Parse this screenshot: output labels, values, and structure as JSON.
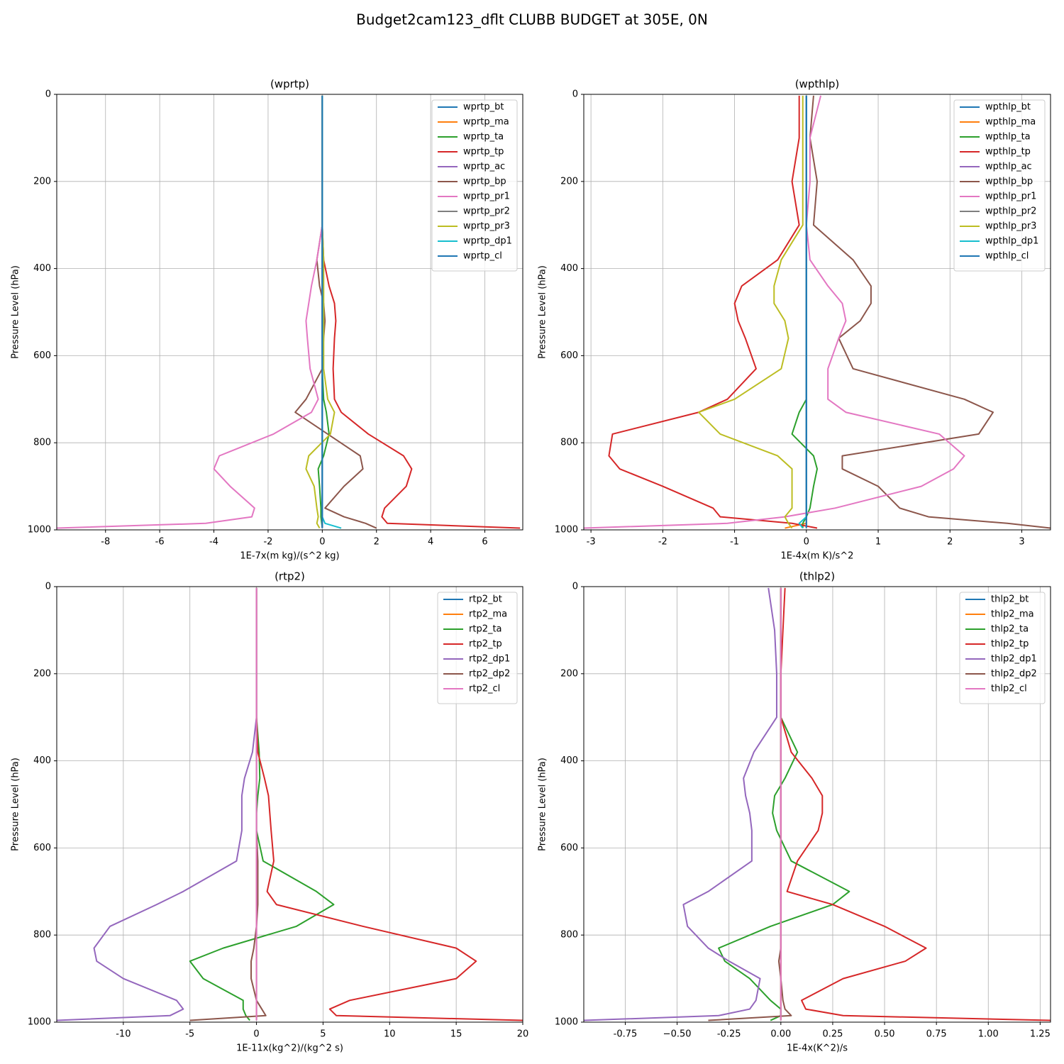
{
  "title": "Budget2cam123_dflt CLUBB BUDGET at 305E, 0N",
  "chart_data": [
    {
      "type": "line",
      "title": "(wprtp)",
      "xlabel": "1E-7x(m kg)/(s^2 kg)",
      "ylabel": "Pressure Level (hPa)",
      "y": [
        3,
        100,
        200,
        300,
        380,
        440,
        480,
        520,
        560,
        630,
        700,
        730,
        780,
        830,
        860,
        900,
        950,
        970,
        985,
        996
      ],
      "xlim": [
        -9.8,
        7.4
      ],
      "ylim": [
        1000,
        0
      ],
      "xticks": [
        -8,
        -6,
        -4,
        -2,
        0,
        2,
        4,
        6
      ],
      "yticks": [
        0,
        200,
        400,
        600,
        800,
        1000
      ],
      "grid": true,
      "legend": "upper-right",
      "series": [
        {
          "name": "wprtp_bt",
          "color": "#1f77b4",
          "values": [
            0,
            0,
            0,
            0,
            0,
            0,
            0,
            0,
            0,
            0,
            0,
            0,
            0,
            0,
            0,
            0,
            0,
            0,
            0,
            0
          ]
        },
        {
          "name": "wprtp_ma",
          "color": "#ff7f0e",
          "values": [
            0,
            0,
            0,
            0,
            0,
            0,
            0,
            0,
            0,
            0,
            0,
            0,
            0,
            0,
            0,
            0,
            0,
            0,
            0,
            0
          ]
        },
        {
          "name": "wprtp_ta",
          "color": "#2ca02c",
          "values": [
            0,
            0,
            0,
            0,
            0,
            0,
            0,
            0,
            0,
            0,
            0.05,
            0.15,
            0.25,
            0.05,
            -0.15,
            -0.1,
            -0.05,
            -0.05,
            -0.02,
            0
          ]
        },
        {
          "name": "wprtp_tp",
          "color": "#d62728",
          "values": [
            0,
            0,
            0,
            0,
            0.05,
            0.25,
            0.45,
            0.5,
            0.45,
            0.4,
            0.45,
            0.7,
            1.7,
            3.0,
            3.3,
            3.1,
            2.3,
            2.2,
            2.4,
            7.3
          ]
        },
        {
          "name": "wprtp_ac",
          "color": "#9467bd",
          "values": [
            0,
            0,
            0,
            0,
            0,
            0,
            0,
            0,
            0,
            0,
            0,
            0,
            0,
            0,
            0,
            0,
            0,
            0,
            0,
            0
          ]
        },
        {
          "name": "wprtp_bp",
          "color": "#8c564b",
          "values": [
            0,
            0,
            0,
            0,
            -0.2,
            -0.1,
            0.05,
            0.1,
            0.05,
            0,
            -0.6,
            -1.0,
            0.2,
            1.4,
            1.5,
            0.8,
            0.1,
            0.8,
            1.6,
            2.0
          ]
        },
        {
          "name": "wprtp_pr1",
          "color": "#e377c2",
          "values": [
            0,
            0,
            0,
            0,
            -0.2,
            -0.4,
            -0.5,
            -0.6,
            -0.55,
            -0.45,
            -0.15,
            -0.4,
            -1.8,
            -3.8,
            -4.0,
            -3.4,
            -2.5,
            -2.6,
            -4.3,
            -9.8
          ]
        },
        {
          "name": "wprtp_pr2",
          "color": "#7f7f7f",
          "values": [
            0,
            0,
            0,
            0,
            0,
            0,
            0,
            0,
            0,
            0,
            0,
            0,
            0,
            0,
            0,
            0,
            0,
            0,
            0,
            0
          ]
        },
        {
          "name": "wprtp_pr3",
          "color": "#bcbd22",
          "values": [
            0,
            0,
            0,
            0,
            0.05,
            0.05,
            0.05,
            0.05,
            0.05,
            0.05,
            0.2,
            0.45,
            0.3,
            -0.5,
            -0.6,
            -0.3,
            -0.2,
            -0.15,
            -0.2,
            -0.1
          ]
        },
        {
          "name": "wprtp_dp1",
          "color": "#17becf",
          "values": [
            0,
            0,
            0,
            0,
            0,
            0,
            0,
            0,
            0,
            0,
            0,
            0,
            0,
            0,
            0,
            0,
            0,
            0,
            0.1,
            0.7
          ]
        },
        {
          "name": "wprtp_cl",
          "color": "#1f77b4",
          "values": [
            0,
            0,
            0,
            0,
            0,
            0,
            0,
            0,
            0,
            0,
            0,
            0,
            0,
            0,
            0,
            0,
            0,
            0,
            0,
            0
          ]
        }
      ]
    },
    {
      "type": "line",
      "title": "(wpthlp)",
      "xlabel": "1E-4x(m K)/s^2",
      "ylabel": "Pressure Level (hPa)",
      "y": [
        3,
        100,
        200,
        300,
        380,
        440,
        480,
        520,
        560,
        630,
        700,
        730,
        780,
        830,
        860,
        900,
        950,
        970,
        985,
        996
      ],
      "xlim": [
        -3.1,
        3.4
      ],
      "ylim": [
        1000,
        0
      ],
      "xticks": [
        -3,
        -2,
        -1,
        0,
        1,
        2,
        3
      ],
      "yticks": [
        0,
        200,
        400,
        600,
        800,
        1000
      ],
      "grid": true,
      "legend": "upper-right",
      "series": [
        {
          "name": "wpthlp_bt",
          "color": "#1f77b4",
          "values": [
            0,
            0,
            0,
            0,
            0,
            0,
            0,
            0,
            0,
            0,
            0,
            0,
            0,
            0,
            0,
            0,
            0,
            0,
            0,
            0
          ]
        },
        {
          "name": "wpthlp_ma",
          "color": "#ff7f0e",
          "values": [
            0,
            0,
            0,
            0,
            0,
            0,
            0,
            0,
            0,
            0,
            0,
            0,
            0,
            0,
            0,
            0,
            0,
            0,
            0,
            -0.3
          ]
        },
        {
          "name": "wpthlp_ta",
          "color": "#2ca02c",
          "values": [
            0,
            0,
            0,
            0,
            0,
            0,
            0,
            0,
            0,
            0,
            0,
            -0.1,
            -0.2,
            0.1,
            0.15,
            0.1,
            0.05,
            0,
            -0.05,
            -0.05
          ]
        },
        {
          "name": "wpthlp_tp",
          "color": "#d62728",
          "values": [
            -0.1,
            -0.1,
            -0.2,
            -0.1,
            -0.4,
            -0.9,
            -1.0,
            -0.95,
            -0.85,
            -0.7,
            -1.1,
            -1.5,
            -2.7,
            -2.75,
            -2.6,
            -2.0,
            -1.3,
            -1.2,
            -0.2,
            0.15
          ]
        },
        {
          "name": "wpthlp_ac",
          "color": "#9467bd",
          "values": [
            0,
            0,
            0,
            0,
            0,
            0,
            0,
            0,
            0,
            0,
            0,
            0,
            0,
            0,
            0,
            0,
            0,
            0,
            0,
            0
          ]
        },
        {
          "name": "wpthlp_bp",
          "color": "#8c564b",
          "values": [
            0.1,
            0.05,
            0.15,
            0.1,
            0.65,
            0.9,
            0.9,
            0.75,
            0.45,
            0.65,
            2.2,
            2.6,
            2.4,
            0.5,
            0.5,
            1.0,
            1.3,
            1.7,
            2.8,
            3.4
          ]
        },
        {
          "name": "wpthlp_pr1",
          "color": "#e377c2",
          "values": [
            0.2,
            0.05,
            0.05,
            0,
            0.05,
            0.3,
            0.5,
            0.55,
            0.45,
            0.3,
            0.3,
            0.55,
            1.85,
            2.2,
            2.05,
            1.6,
            0.4,
            -0.3,
            -1.1,
            -3.1
          ]
        },
        {
          "name": "wpthlp_pr2",
          "color": "#7f7f7f",
          "values": [
            0,
            0,
            0,
            0,
            0,
            0,
            0,
            0,
            0,
            0,
            0,
            0,
            0,
            0,
            0,
            0,
            0,
            0,
            0,
            0
          ]
        },
        {
          "name": "wpthlp_pr3",
          "color": "#bcbd22",
          "values": [
            -0.05,
            -0.05,
            -0.05,
            -0.05,
            -0.35,
            -0.45,
            -0.45,
            -0.3,
            -0.25,
            -0.35,
            -1.0,
            -1.5,
            -1.2,
            -0.4,
            -0.2,
            -0.2,
            -0.2,
            -0.3,
            -0.25,
            -0.2
          ]
        },
        {
          "name": "wpthlp_dp1",
          "color": "#17becf",
          "values": [
            0,
            0,
            0,
            0,
            0,
            0,
            0,
            0,
            0,
            0,
            0,
            0,
            0,
            0,
            0,
            0,
            0,
            0,
            -0.1,
            -0.05
          ]
        },
        {
          "name": "wpthlp_cl",
          "color": "#1f77b4",
          "values": [
            0,
            0,
            0,
            0,
            0,
            0,
            0,
            0,
            0,
            0,
            0,
            0,
            0,
            0,
            0,
            0,
            0,
            0,
            0,
            0
          ]
        }
      ]
    },
    {
      "type": "line",
      "title": "(rtp2)",
      "xlabel": "1E-11x(kg^2)/(kg^2 s)",
      "ylabel": "Pressure Level (hPa)",
      "y": [
        3,
        100,
        200,
        300,
        380,
        440,
        480,
        520,
        560,
        630,
        700,
        730,
        780,
        830,
        860,
        900,
        950,
        970,
        985,
        996
      ],
      "xlim": [
        -15,
        20
      ],
      "ylim": [
        1000,
        0
      ],
      "xticks": [
        -10,
        -5,
        0,
        5,
        10,
        15,
        20
      ],
      "yticks": [
        0,
        200,
        400,
        600,
        800,
        1000
      ],
      "grid": true,
      "legend": "upper-right",
      "series": [
        {
          "name": "rtp2_bt",
          "color": "#1f77b4",
          "values": [
            0,
            0,
            0,
            0,
            0,
            0,
            0,
            0,
            0,
            0,
            0,
            0,
            0,
            0,
            0,
            0,
            0,
            0,
            0,
            0
          ]
        },
        {
          "name": "rtp2_ma",
          "color": "#ff7f0e",
          "values": [
            0,
            0,
            0,
            0,
            0,
            0,
            0,
            0,
            0,
            0,
            0,
            0,
            0,
            0,
            0,
            0,
            0,
            0,
            0,
            0
          ]
        },
        {
          "name": "rtp2_ta",
          "color": "#2ca02c",
          "values": [
            0,
            0,
            0,
            0,
            0.2,
            0.25,
            0.1,
            0,
            0,
            0.5,
            4.5,
            5.8,
            3,
            -2.5,
            -5,
            -4,
            -1,
            -1,
            -0.8,
            -0.5
          ]
        },
        {
          "name": "rtp2_tp",
          "color": "#d62728",
          "values": [
            0,
            0,
            0,
            0,
            0.1,
            0.6,
            0.9,
            1.0,
            1.1,
            1.3,
            0.8,
            1.5,
            8,
            15,
            16.5,
            15,
            7,
            5.5,
            6,
            20
          ]
        },
        {
          "name": "rtp2_dp1",
          "color": "#9467bd",
          "values": [
            0,
            0,
            0,
            0,
            -0.3,
            -0.9,
            -1.1,
            -1.1,
            -1.1,
            -1.5,
            -5.5,
            -7.5,
            -11,
            -12.2,
            -12,
            -10,
            -6,
            -5.5,
            -6.5,
            -15
          ]
        },
        {
          "name": "rtp2_dp2",
          "color": "#8c564b",
          "values": [
            0,
            0,
            0,
            0,
            0,
            0,
            0,
            0,
            0,
            0.1,
            0.1,
            0.1,
            0,
            -0.2,
            -0.4,
            -0.4,
            0,
            0.4,
            0.7,
            -5
          ]
        },
        {
          "name": "rtp2_cl",
          "color": "#e377c2",
          "values": [
            0,
            0,
            0,
            0,
            0,
            0,
            0,
            0,
            0,
            0,
            0,
            0,
            0,
            0,
            0,
            0,
            0,
            0,
            0,
            0
          ]
        }
      ]
    },
    {
      "type": "line",
      "title": "(thlp2)",
      "xlabel": "1E-4x(K^2)/s",
      "ylabel": "Pressure Level (hPa)",
      "y": [
        3,
        100,
        200,
        300,
        380,
        440,
        480,
        520,
        560,
        630,
        700,
        730,
        780,
        830,
        860,
        900,
        950,
        970,
        985,
        996
      ],
      "xlim": [
        -0.95,
        1.3
      ],
      "ylim": [
        1000,
        0
      ],
      "xticks": [
        -0.75,
        {
          "value": -0.5,
          "label": "−0.50"
        },
        -0.25,
        {
          "value": 0,
          "label": "0.00"
        },
        0.25,
        {
          "value": 0.5,
          "label": "0.50"
        },
        0.75,
        {
          "value": 1,
          "label": "1.00"
        },
        1.25
      ],
      "yticks": [
        0,
        200,
        400,
        600,
        800,
        1000
      ],
      "grid": true,
      "legend": "upper-right",
      "series": [
        {
          "name": "thlp2_bt",
          "color": "#1f77b4",
          "values": [
            0,
            0,
            0,
            0,
            0,
            0,
            0,
            0,
            0,
            0,
            0,
            0,
            0,
            0,
            0,
            0,
            0,
            0,
            0,
            0
          ]
        },
        {
          "name": "thlp2_ma",
          "color": "#ff7f0e",
          "values": [
            0,
            0,
            0,
            0,
            0,
            0,
            0,
            0,
            0,
            0,
            0,
            0,
            0,
            0,
            0,
            0,
            0,
            0,
            0,
            0
          ]
        },
        {
          "name": "thlp2_ta",
          "color": "#2ca02c",
          "values": [
            0,
            0,
            0,
            0,
            0.08,
            0.02,
            -0.03,
            -0.04,
            -0.02,
            0.05,
            0.33,
            0.25,
            -0.05,
            -0.3,
            -0.27,
            -0.15,
            -0.05,
            0,
            0,
            -0.05
          ]
        },
        {
          "name": "thlp2_tp",
          "color": "#d62728",
          "values": [
            0.02,
            0.01,
            0,
            0,
            0.05,
            0.15,
            0.2,
            0.2,
            0.18,
            0.08,
            0.03,
            0.25,
            0.5,
            0.7,
            0.6,
            0.3,
            0.1,
            0.12,
            0.3,
            1.3
          ]
        },
        {
          "name": "thlp2_dp1",
          "color": "#9467bd",
          "values": [
            -0.06,
            -0.03,
            -0.02,
            -0.02,
            -0.13,
            -0.18,
            -0.17,
            -0.15,
            -0.14,
            -0.14,
            -0.35,
            -0.47,
            -0.45,
            -0.35,
            -0.25,
            -0.1,
            -0.12,
            -0.15,
            -0.3,
            -0.95
          ]
        },
        {
          "name": "thlp2_dp2",
          "color": "#8c564b",
          "values": [
            0,
            0,
            0,
            0,
            0,
            0,
            0,
            0,
            0,
            0,
            0,
            0,
            0,
            0,
            -0.01,
            0,
            0.01,
            0.02,
            0.05,
            -0.35
          ]
        },
        {
          "name": "thlp2_cl",
          "color": "#e377c2",
          "values": [
            0,
            0,
            0,
            0,
            0,
            0,
            0,
            0,
            0,
            0,
            0,
            0,
            0,
            0,
            0,
            0,
            0,
            0,
            0,
            0
          ]
        }
      ]
    }
  ]
}
